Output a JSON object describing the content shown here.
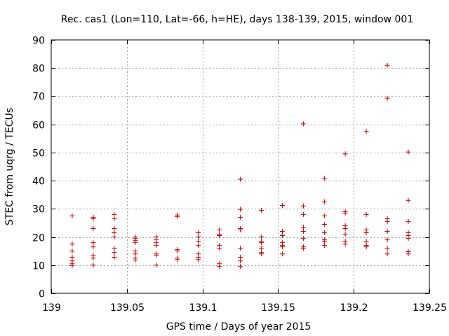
{
  "chart_data": {
    "type": "scatter",
    "title": "Rec. cas1 (Lon=110, Lat=-66, h=HE), days 138-139, 2015, window 001",
    "xlabel": "GPS time / Days of year 2015",
    "ylabel": "STEC from uqrg / TECUs",
    "xlim": [
      139,
      139.25
    ],
    "ylim": [
      0,
      90
    ],
    "x_ticks": [
      139,
      139.05,
      139.1,
      139.15,
      139.2,
      139.25
    ],
    "x_tick_labels": [
      "139",
      "139.05",
      "139.1",
      "139.15",
      "139.2",
      "139.25"
    ],
    "y_ticks": [
      0,
      10,
      20,
      30,
      40,
      50,
      60,
      70,
      80,
      90
    ],
    "y_tick_labels": [
      "0",
      "10",
      "20",
      "30",
      "40",
      "50",
      "60",
      "70",
      "80",
      "90"
    ],
    "grid": true,
    "marker": "plus",
    "color": "#cc0000",
    "points": [
      [
        139.0139,
        27.5
      ],
      [
        139.0139,
        17.5
      ],
      [
        139.0139,
        15.0
      ],
      [
        139.0139,
        12.8
      ],
      [
        139.0139,
        11.5
      ],
      [
        139.0139,
        10.5
      ],
      [
        139.0139,
        9.8
      ],
      [
        139.0278,
        27.0
      ],
      [
        139.0278,
        26.5
      ],
      [
        139.0278,
        23.0
      ],
      [
        139.0278,
        18.0
      ],
      [
        139.0278,
        16.5
      ],
      [
        139.0278,
        13.5
      ],
      [
        139.0278,
        12.5
      ],
      [
        139.0278,
        10.0
      ],
      [
        139.0417,
        28.0
      ],
      [
        139.0417,
        26.5
      ],
      [
        139.0417,
        23.0
      ],
      [
        139.0417,
        21.5
      ],
      [
        139.0417,
        20.0
      ],
      [
        139.0417,
        16.0
      ],
      [
        139.0417,
        14.5
      ],
      [
        139.0417,
        12.8
      ],
      [
        139.0556,
        20.0
      ],
      [
        139.0556,
        19.5
      ],
      [
        139.0556,
        18.8
      ],
      [
        139.0556,
        18.0
      ],
      [
        139.0556,
        15.0
      ],
      [
        139.0556,
        14.0
      ],
      [
        139.0556,
        12.5
      ],
      [
        139.0556,
        11.8
      ],
      [
        139.0694,
        20.0
      ],
      [
        139.0694,
        19.0
      ],
      [
        139.0694,
        18.0
      ],
      [
        139.0694,
        17.0
      ],
      [
        139.0694,
        14.0
      ],
      [
        139.0694,
        13.5
      ],
      [
        139.0694,
        10.0
      ],
      [
        139.0833,
        27.8
      ],
      [
        139.0833,
        27.2
      ],
      [
        139.0833,
        15.5
      ],
      [
        139.0833,
        15.0
      ],
      [
        139.0833,
        12.5
      ],
      [
        139.0833,
        12.0
      ],
      [
        139.0972,
        21.5
      ],
      [
        139.0972,
        20.0
      ],
      [
        139.0972,
        18.5
      ],
      [
        139.0972,
        17.0
      ],
      [
        139.0972,
        14.0
      ],
      [
        139.0972,
        12.8
      ],
      [
        139.0972,
        12.0
      ],
      [
        139.1111,
        22.5
      ],
      [
        139.1111,
        21.0
      ],
      [
        139.1111,
        20.5
      ],
      [
        139.1111,
        17.0
      ],
      [
        139.1111,
        16.0
      ],
      [
        139.1111,
        10.5
      ],
      [
        139.1111,
        9.5
      ],
      [
        139.125,
        40.5
      ],
      [
        139.125,
        29.8
      ],
      [
        139.125,
        27.0
      ],
      [
        139.125,
        23.0
      ],
      [
        139.125,
        22.5
      ],
      [
        139.125,
        16.0
      ],
      [
        139.125,
        12.8
      ],
      [
        139.125,
        11.5
      ],
      [
        139.125,
        9.5
      ],
      [
        139.1389,
        29.5
      ],
      [
        139.1389,
        20.0
      ],
      [
        139.1389,
        18.5
      ],
      [
        139.1389,
        18.0
      ],
      [
        139.1389,
        16.0
      ],
      [
        139.1389,
        14.5
      ],
      [
        139.1389,
        14.0
      ],
      [
        139.1528,
        31.2
      ],
      [
        139.1528,
        22.0
      ],
      [
        139.1528,
        20.5
      ],
      [
        139.1528,
        18.0
      ],
      [
        139.1528,
        17.0
      ],
      [
        139.1528,
        16.5
      ],
      [
        139.1528,
        14.0
      ],
      [
        139.1667,
        60.2
      ],
      [
        139.1667,
        31.0
      ],
      [
        139.1667,
        28.0
      ],
      [
        139.1667,
        23.5
      ],
      [
        139.1667,
        22.0
      ],
      [
        139.1667,
        19.5
      ],
      [
        139.1667,
        16.5
      ],
      [
        139.1667,
        16.0
      ],
      [
        139.1806,
        40.8
      ],
      [
        139.1806,
        32.5
      ],
      [
        139.1806,
        27.5
      ],
      [
        139.1806,
        24.5
      ],
      [
        139.1806,
        21.5
      ],
      [
        139.1806,
        19.0
      ],
      [
        139.1806,
        18.5
      ],
      [
        139.1806,
        17.0
      ],
      [
        139.1944,
        49.5
      ],
      [
        139.1944,
        29.0
      ],
      [
        139.1944,
        28.5
      ],
      [
        139.1944,
        24.0
      ],
      [
        139.1944,
        23.0
      ],
      [
        139.1944,
        21.0
      ],
      [
        139.1944,
        18.5
      ],
      [
        139.1944,
        17.5
      ],
      [
        139.2083,
        57.5
      ],
      [
        139.2083,
        28.0
      ],
      [
        139.2083,
        22.5
      ],
      [
        139.2083,
        21.5
      ],
      [
        139.2083,
        18.5
      ],
      [
        139.2083,
        17.0
      ],
      [
        139.2083,
        16.5
      ],
      [
        139.2222,
        81.0
      ],
      [
        139.2222,
        69.3
      ],
      [
        139.2222,
        26.5
      ],
      [
        139.2222,
        25.5
      ],
      [
        139.2222,
        22.0
      ],
      [
        139.2222,
        19.0
      ],
      [
        139.2222,
        16.0
      ],
      [
        139.2222,
        14.0
      ],
      [
        139.2361,
        50.2
      ],
      [
        139.2361,
        33.0
      ],
      [
        139.2361,
        25.5
      ],
      [
        139.2361,
        21.5
      ],
      [
        139.2361,
        20.5
      ],
      [
        139.2361,
        19.5
      ],
      [
        139.2361,
        14.8
      ],
      [
        139.2361,
        14.0
      ]
    ]
  }
}
